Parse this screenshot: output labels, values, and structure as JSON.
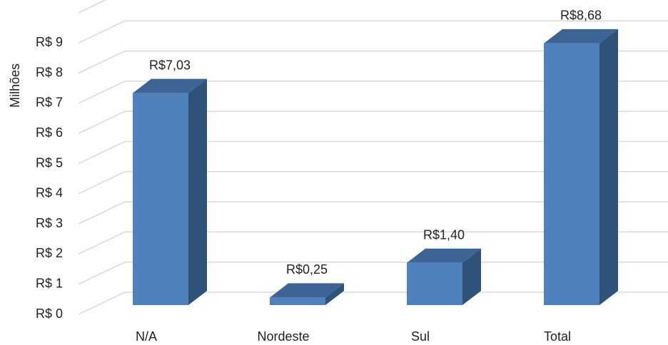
{
  "chart_data": {
    "type": "bar3d",
    "y_label": "Milhões",
    "categories": [
      "N/A",
      "Nordeste",
      "Sul",
      "Total"
    ],
    "values": [
      7.03,
      0.25,
      1.4,
      8.68
    ],
    "value_labels": [
      "R$7,03",
      "R$0,25",
      "R$1,40",
      "R$8,68"
    ],
    "color": "#4f81bd",
    "ylim": [
      0,
      10
    ],
    "yticks": [
      {
        "value": 0,
        "label": "R$ 0"
      },
      {
        "value": 1,
        "label": "R$ 1"
      },
      {
        "value": 2,
        "label": "R$ 2"
      },
      {
        "value": 3,
        "label": "R$ 3"
      },
      {
        "value": 4,
        "label": "R$ 4"
      },
      {
        "value": 5,
        "label": "R$ 5"
      },
      {
        "value": 6,
        "label": "R$ 6"
      },
      {
        "value": 7,
        "label": "R$ 7"
      },
      {
        "value": 8,
        "label": "R$ 8"
      },
      {
        "value": 9,
        "label": "R$ 9"
      }
    ],
    "grid": true
  }
}
